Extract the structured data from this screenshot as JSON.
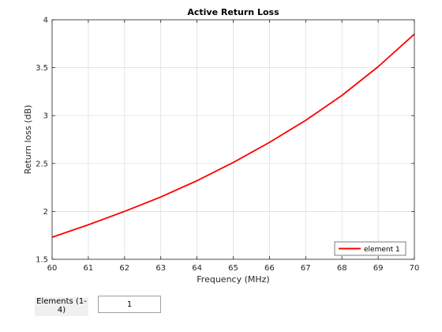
{
  "chart_data": {
    "type": "line",
    "title": "Active Return Loss",
    "xlabel": "Frequency (MHz)",
    "ylabel": "Return loss (dB)",
    "xlim": [
      60,
      70
    ],
    "ylim": [
      1.5,
      4
    ],
    "xticks": [
      60,
      61,
      62,
      63,
      64,
      65,
      66,
      67,
      68,
      69,
      70
    ],
    "yticks": [
      1.5,
      2,
      2.5,
      3,
      3.5,
      4
    ],
    "ytick_labels": [
      "1.5",
      "2",
      "2.5",
      "3",
      "3.5",
      "4"
    ],
    "grid": true,
    "legend_position": "bottom-right",
    "series": [
      {
        "name": "element 1",
        "color": "#ff0000",
        "x": [
          60,
          61,
          62,
          63,
          64,
          65,
          66,
          67,
          68,
          69,
          70
        ],
        "y": [
          1.73,
          1.86,
          2.0,
          2.15,
          2.32,
          2.51,
          2.72,
          2.95,
          3.21,
          3.51,
          3.85
        ]
      }
    ]
  },
  "controls": {
    "elements_label": "Elements (1-4)",
    "elements_value": "1"
  }
}
